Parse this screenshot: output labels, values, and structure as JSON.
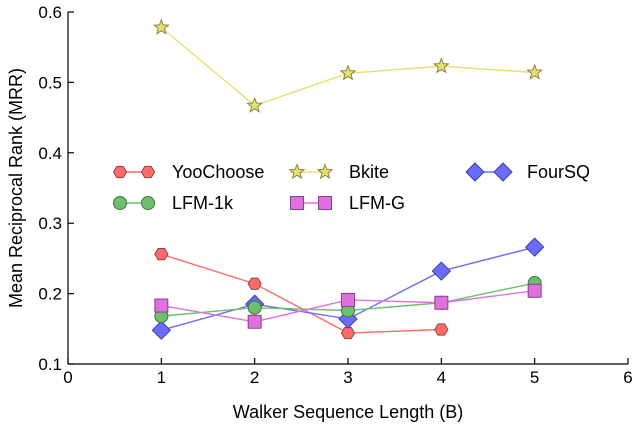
{
  "chart_data": {
    "type": "line",
    "title": "",
    "xlabel": "Walker Sequence Length (B)",
    "ylabel": "Mean Reciprocal Rank (MRR)",
    "xlim": [
      0,
      6
    ],
    "ylim": [
      0.1,
      0.6
    ],
    "xticks": [
      "0",
      "1",
      "2",
      "3",
      "4",
      "5",
      "6"
    ],
    "yticks": [
      "0.1",
      "0.2",
      "0.3",
      "0.4",
      "0.5",
      "0.6"
    ],
    "grid": false,
    "legend_placement": "center",
    "series": [
      {
        "name": "YooChoose",
        "marker": "hexagon",
        "color": "#ff6b6b",
        "x": [
          1,
          2,
          3,
          4
        ],
        "y": [
          0.256,
          0.214,
          0.144,
          0.149
        ]
      },
      {
        "name": "Bkite",
        "marker": "star",
        "color": "#e6e06e",
        "x": [
          1,
          2,
          3,
          4,
          5
        ],
        "y": [
          0.578,
          0.467,
          0.513,
          0.523,
          0.514
        ]
      },
      {
        "name": "FourSQ",
        "marker": "diamond",
        "color": "#6b6bff",
        "x": [
          1,
          2,
          3,
          4,
          5
        ],
        "y": [
          0.148,
          0.185,
          0.164,
          0.232,
          0.266
        ]
      },
      {
        "name": "LFM-1k",
        "marker": "circle",
        "color": "#6cc06c",
        "x": [
          1,
          2,
          3,
          4,
          5
        ],
        "y": [
          0.168,
          0.18,
          0.176,
          0.187,
          0.215
        ]
      },
      {
        "name": "LFM-G",
        "marker": "square",
        "color": "#e070e0",
        "x": [
          1,
          2,
          3,
          4,
          5
        ],
        "y": [
          0.183,
          0.16,
          0.191,
          0.187,
          0.204
        ]
      }
    ]
  }
}
